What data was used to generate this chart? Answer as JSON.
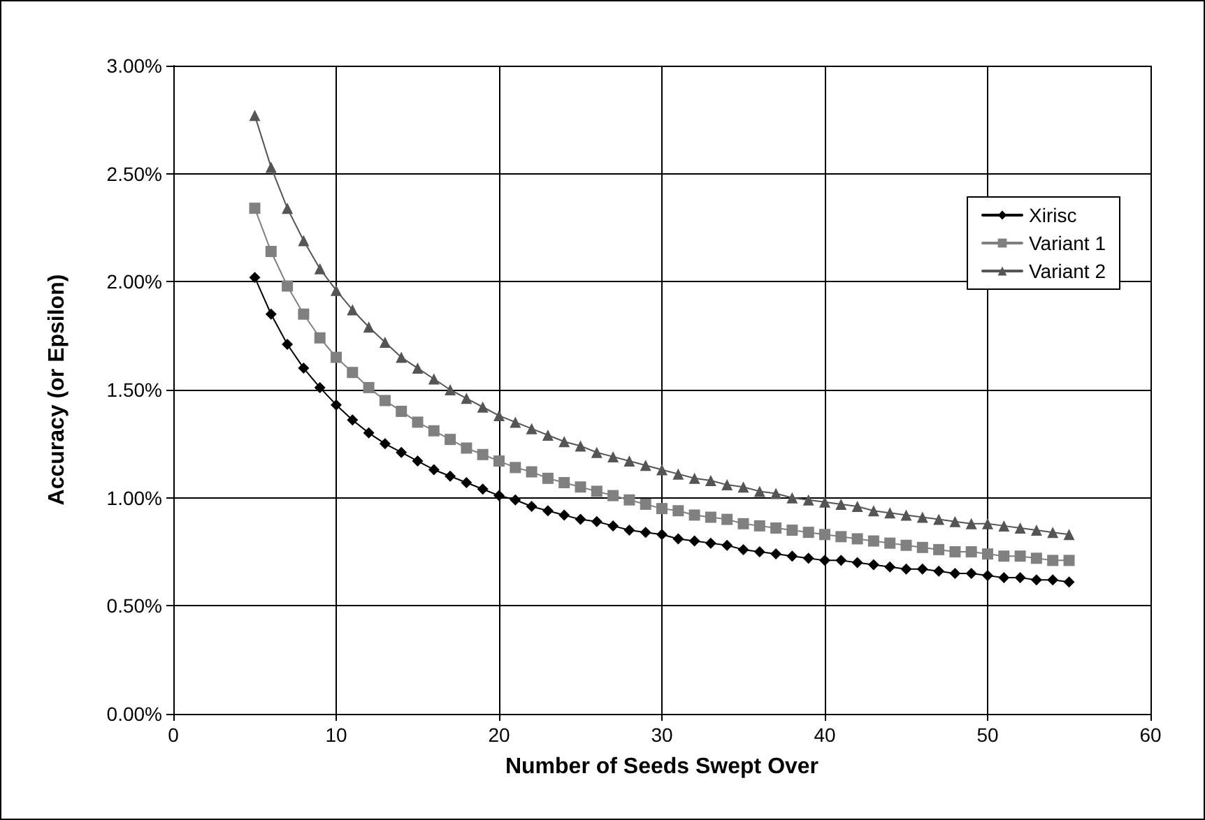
{
  "chart_data": {
    "type": "line",
    "xlabel": "Number of Seeds Swept Over",
    "ylabel": "Accuracy (or Epsilon)",
    "x": [
      5,
      6,
      7,
      8,
      9,
      10,
      11,
      12,
      13,
      14,
      15,
      16,
      17,
      18,
      19,
      20,
      21,
      22,
      23,
      24,
      25,
      26,
      27,
      28,
      29,
      30,
      31,
      32,
      33,
      34,
      35,
      36,
      37,
      38,
      39,
      40,
      41,
      42,
      43,
      44,
      45,
      46,
      47,
      48,
      49,
      50,
      51,
      52,
      53,
      54,
      55
    ],
    "series": [
      {
        "name": "Xirisc",
        "color": "#000000",
        "marker": "diamond",
        "values": [
          2.02,
          1.85,
          1.71,
          1.6,
          1.51,
          1.43,
          1.36,
          1.3,
          1.25,
          1.21,
          1.17,
          1.13,
          1.1,
          1.07,
          1.04,
          1.01,
          0.99,
          0.96,
          0.94,
          0.92,
          0.9,
          0.89,
          0.87,
          0.85,
          0.84,
          0.83,
          0.81,
          0.8,
          0.79,
          0.78,
          0.76,
          0.75,
          0.74,
          0.73,
          0.72,
          0.71,
          0.71,
          0.7,
          0.69,
          0.68,
          0.67,
          0.67,
          0.66,
          0.65,
          0.65,
          0.64,
          0.63,
          0.63,
          0.62,
          0.62,
          0.61
        ]
      },
      {
        "name": "Variant 1",
        "color": "#808080",
        "marker": "square",
        "values": [
          2.34,
          2.14,
          1.98,
          1.85,
          1.74,
          1.65,
          1.58,
          1.51,
          1.45,
          1.4,
          1.35,
          1.31,
          1.27,
          1.23,
          1.2,
          1.17,
          1.14,
          1.12,
          1.09,
          1.07,
          1.05,
          1.03,
          1.01,
          0.99,
          0.97,
          0.95,
          0.94,
          0.92,
          0.91,
          0.9,
          0.88,
          0.87,
          0.86,
          0.85,
          0.84,
          0.83,
          0.82,
          0.81,
          0.8,
          0.79,
          0.78,
          0.77,
          0.76,
          0.75,
          0.75,
          0.74,
          0.73,
          0.73,
          0.72,
          0.71,
          0.71
        ]
      },
      {
        "name": "Variant 2",
        "color": "#555555",
        "marker": "triangle",
        "values": [
          2.77,
          2.53,
          2.34,
          2.19,
          2.06,
          1.96,
          1.87,
          1.79,
          1.72,
          1.65,
          1.6,
          1.55,
          1.5,
          1.46,
          1.42,
          1.38,
          1.35,
          1.32,
          1.29,
          1.26,
          1.24,
          1.21,
          1.19,
          1.17,
          1.15,
          1.13,
          1.11,
          1.09,
          1.08,
          1.06,
          1.05,
          1.03,
          1.02,
          1.0,
          0.99,
          0.98,
          0.97,
          0.96,
          0.94,
          0.93,
          0.92,
          0.91,
          0.9,
          0.89,
          0.88,
          0.88,
          0.87,
          0.86,
          0.85,
          0.84,
          0.83
        ]
      }
    ],
    "xlim": [
      0,
      60
    ],
    "xticks": [
      0,
      10,
      20,
      30,
      40,
      50,
      60
    ],
    "ylim": [
      0,
      3
    ],
    "yticks": [
      {
        "value": 0,
        "label": "0.00%"
      },
      {
        "value": 0.5,
        "label": "0.50%"
      },
      {
        "value": 1,
        "label": "1.00%"
      },
      {
        "value": 1.5,
        "label": "1.50%"
      },
      {
        "value": 2,
        "label": "2.00%"
      },
      {
        "value": 2.5,
        "label": "2.50%"
      },
      {
        "value": 3,
        "label": "3.00%"
      }
    ],
    "grid": true,
    "legend": "right",
    "line_style": "solid"
  }
}
